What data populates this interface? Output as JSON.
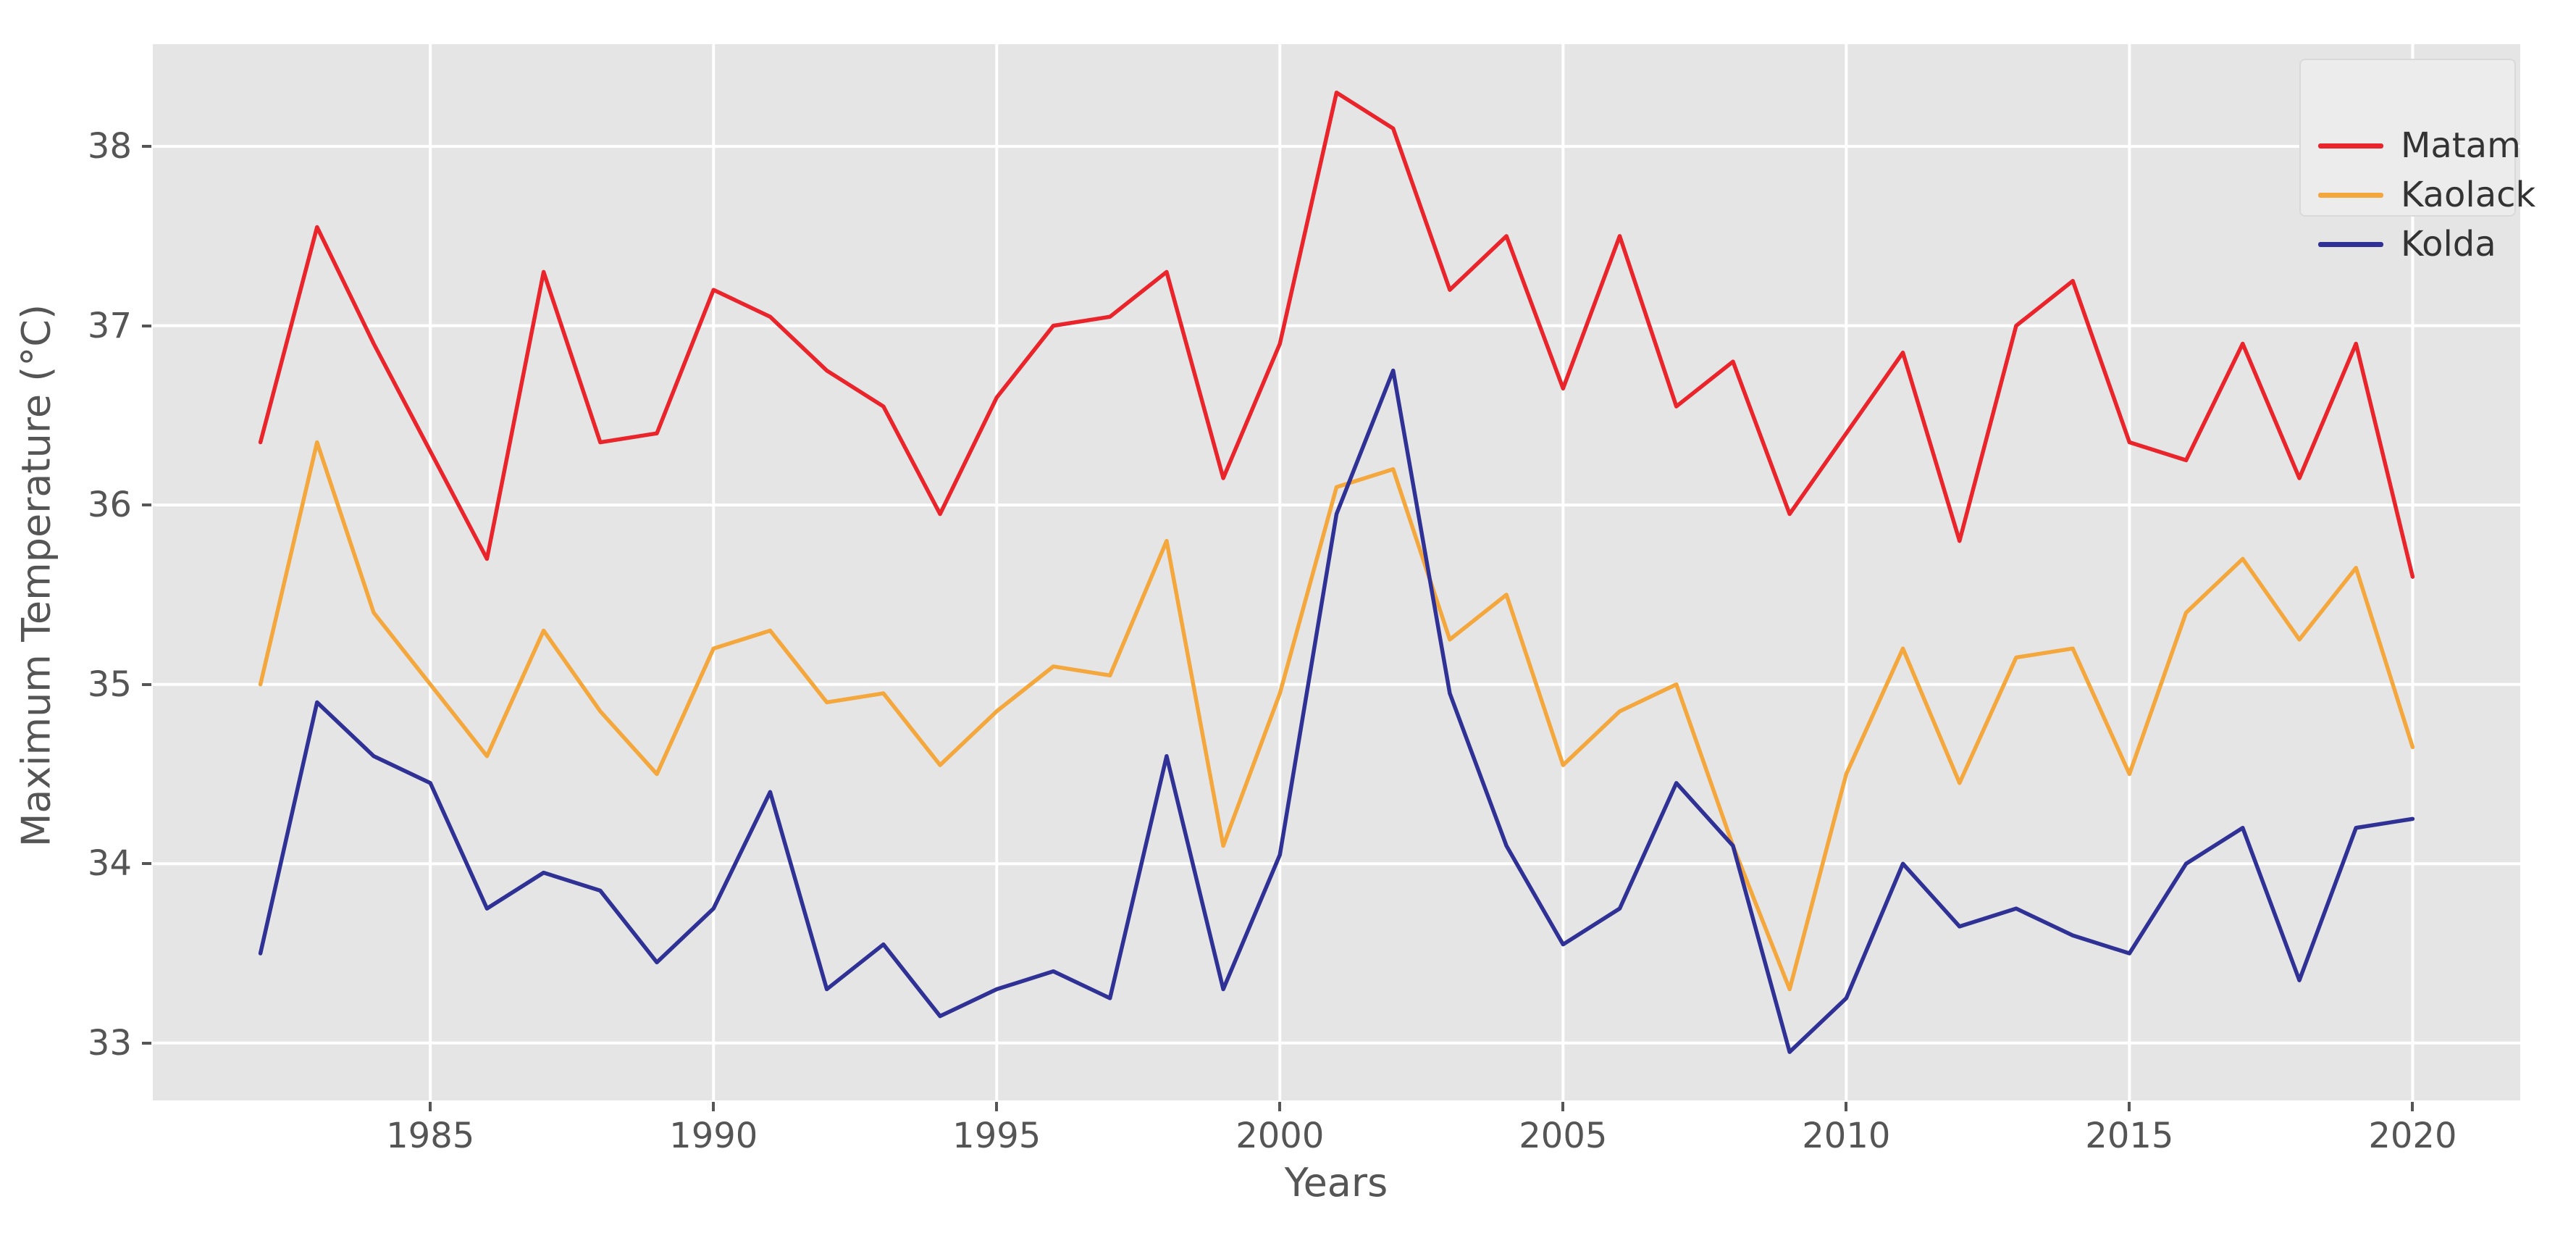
{
  "chart_data": {
    "type": "line",
    "title": "",
    "xlabel": "Years",
    "ylabel": "Maximum Temperature (°C)",
    "x": [
      1982,
      1983,
      1984,
      1985,
      1986,
      1987,
      1988,
      1989,
      1990,
      1991,
      1992,
      1993,
      1994,
      1995,
      1996,
      1997,
      1998,
      1999,
      2000,
      2001,
      2002,
      2003,
      2004,
      2005,
      2006,
      2007,
      2008,
      2009,
      2010,
      2011,
      2012,
      2013,
      2014,
      2015,
      2016,
      2017,
      2018,
      2019,
      2020
    ],
    "series": [
      {
        "name": "Matam",
        "color": "#e9242b",
        "values": [
          36.35,
          37.55,
          36.9,
          36.3,
          35.7,
          37.3,
          36.35,
          36.4,
          37.2,
          37.05,
          36.75,
          36.55,
          35.95,
          36.6,
          37.0,
          37.05,
          37.3,
          36.15,
          36.9,
          38.3,
          38.1,
          37.2,
          37.5,
          36.65,
          37.5,
          36.55,
          36.8,
          35.95,
          36.4,
          36.85,
          35.8,
          37.0,
          37.25,
          36.35,
          36.25,
          36.9,
          36.15,
          36.9,
          35.6
        ]
      },
      {
        "name": "Kaolack",
        "color": "#f3a73c",
        "values": [
          35.0,
          36.35,
          35.4,
          35.0,
          34.6,
          35.3,
          34.85,
          34.5,
          35.2,
          35.3,
          34.9,
          34.95,
          34.55,
          34.85,
          35.1,
          35.05,
          35.8,
          34.1,
          34.95,
          36.1,
          36.2,
          35.25,
          35.5,
          34.55,
          34.85,
          35.0,
          34.1,
          33.3,
          34.5,
          35.2,
          34.45,
          35.15,
          35.2,
          34.5,
          35.4,
          35.7,
          35.25,
          35.65,
          34.65
        ]
      },
      {
        "name": "Kolda",
        "color": "#2f3195",
        "values": [
          33.5,
          34.9,
          34.6,
          34.45,
          33.75,
          33.95,
          33.85,
          33.45,
          33.75,
          34.4,
          33.3,
          33.55,
          33.15,
          33.3,
          33.4,
          33.25,
          34.6,
          33.3,
          34.05,
          35.95,
          36.75,
          34.95,
          34.1,
          33.55,
          33.75,
          34.45,
          34.1,
          32.95,
          33.25,
          34.0,
          33.65,
          33.75,
          33.6,
          33.5,
          34.0,
          34.2,
          33.35,
          34.2,
          34.25
        ]
      }
    ],
    "xticks": [
      1985,
      1990,
      1995,
      2000,
      2005,
      2010,
      2015,
      2020
    ],
    "yticks": [
      33,
      34,
      35,
      36,
      37,
      38
    ],
    "xlim": [
      1980.1,
      2021.9
    ],
    "ylim": [
      32.68,
      38.57
    ],
    "grid": true,
    "legend_position": "upper right",
    "plot_bg": "#e5e5e5",
    "grid_color": "#ffffff",
    "tick_color": "#555555",
    "figure_bg": "#ffffff"
  }
}
